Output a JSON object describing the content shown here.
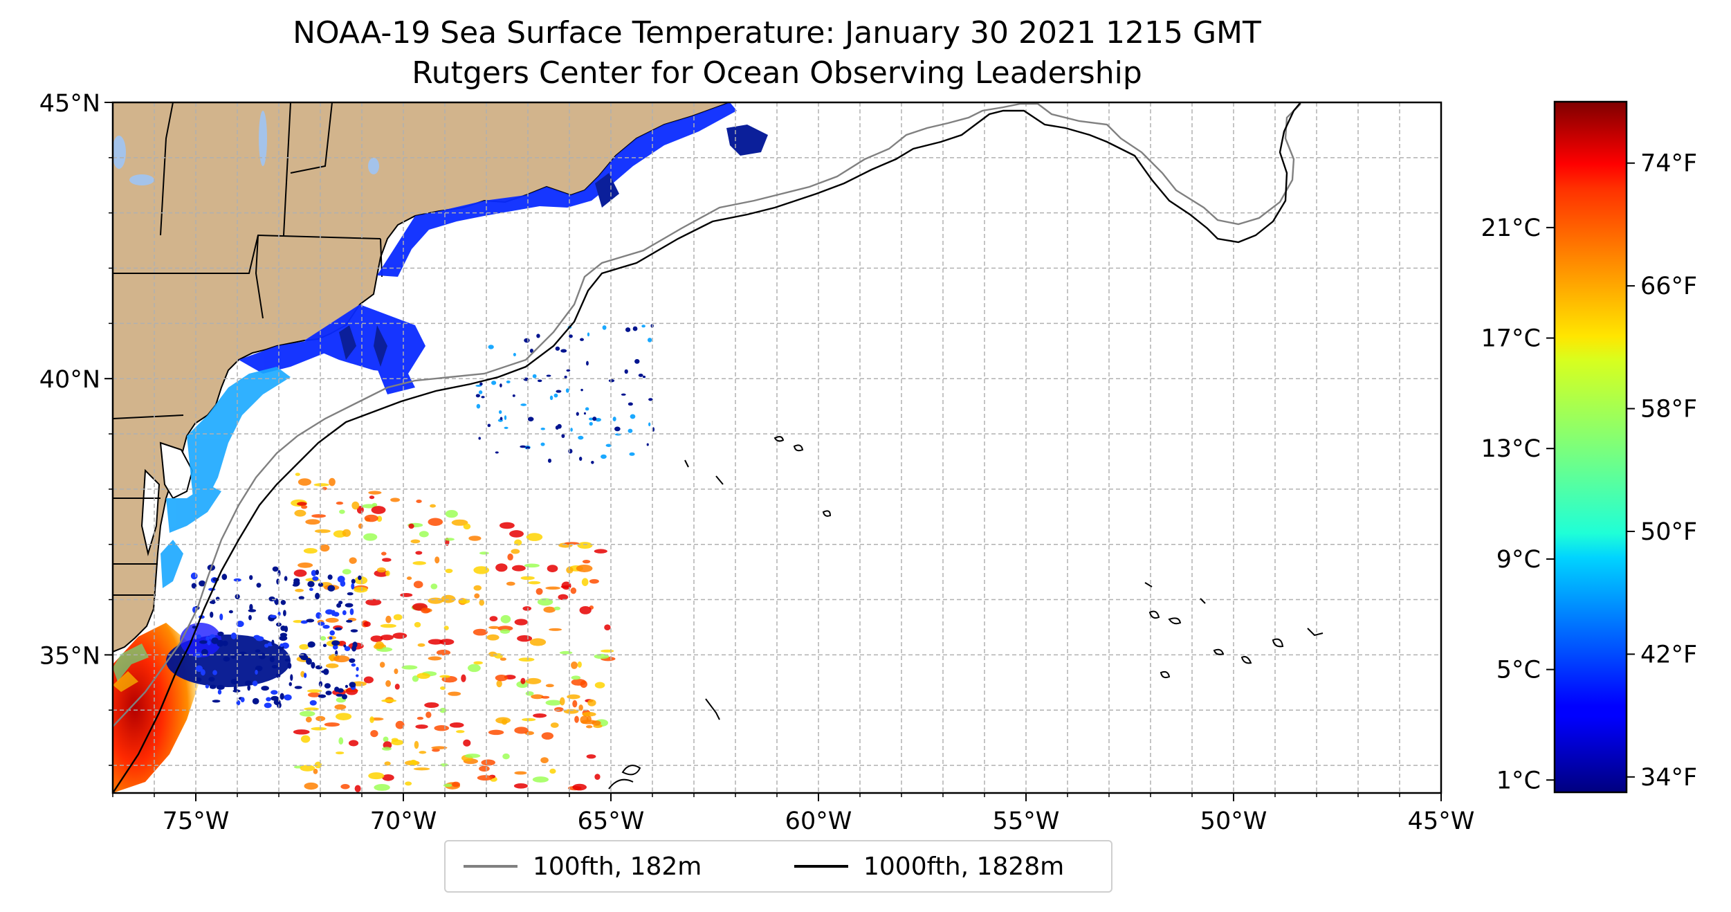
{
  "title": {
    "line1": "NOAA-19 Sea Surface Temperature: January 30 2021 1215 GMT",
    "line2": "Rutgers Center for Ocean Observing Leadership"
  },
  "map": {
    "lon_range": [
      -77,
      -45
    ],
    "lat_range": [
      32.5,
      45
    ],
    "lat_ticks": [
      {
        "value": 45,
        "label": "45°N"
      },
      {
        "value": 40,
        "label": "40°N"
      },
      {
        "value": 35,
        "label": "35°N"
      }
    ],
    "lon_ticks": [
      {
        "value": -75,
        "label": "75°W"
      },
      {
        "value": -70,
        "label": "70°W"
      },
      {
        "value": -65,
        "label": "65°W"
      },
      {
        "value": -60,
        "label": "60°W"
      },
      {
        "value": -55,
        "label": "55°W"
      },
      {
        "value": -50,
        "label": "50°W"
      },
      {
        "value": -45,
        "label": "45°W"
      }
    ],
    "gridlines": "dashed, every 1 degree",
    "land_color": "#d2b48c"
  },
  "legend": {
    "items": [
      {
        "label": "100fth, 182m",
        "color": "#808080"
      },
      {
        "label": "1000fth, 1828m",
        "color": "#000000"
      }
    ],
    "placement": "bottom-center"
  },
  "colorbar": {
    "colormap": "jet",
    "range_f": [
      33,
      78
    ],
    "celsius_ticks": [
      {
        "value_c": 1,
        "label": "1°C"
      },
      {
        "value_c": 5,
        "label": "5°C"
      },
      {
        "value_c": 9,
        "label": "9°C"
      },
      {
        "value_c": 13,
        "label": "13°C"
      },
      {
        "value_c": 17,
        "label": "17°C"
      },
      {
        "value_c": 21,
        "label": "21°C"
      }
    ],
    "fahrenheit_ticks": [
      {
        "value_f": 34,
        "label": "34°F"
      },
      {
        "value_f": 42,
        "label": "42°F"
      },
      {
        "value_f": 50,
        "label": "50°F"
      },
      {
        "value_f": 58,
        "label": "58°F"
      },
      {
        "value_f": 66,
        "label": "66°F"
      },
      {
        "value_f": 74,
        "label": "74°F"
      }
    ]
  }
}
